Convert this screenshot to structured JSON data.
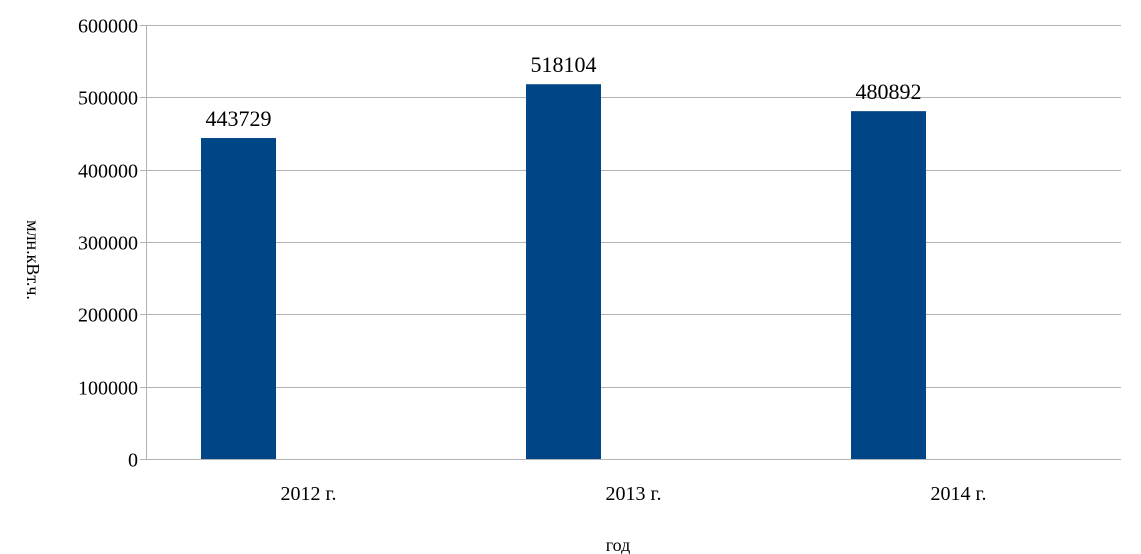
{
  "chart_data": {
    "type": "bar",
    "categories": [
      "2012 г.",
      "2013 г.",
      "2014 г."
    ],
    "series": [
      {
        "values": [
          443729,
          518104,
          480892
        ]
      }
    ],
    "data_labels": [
      "443729",
      "518104",
      "480892"
    ],
    "xlabel": "год",
    "ylabel": "млн.кВт.ч.",
    "ylim": [
      0,
      600000
    ],
    "yticks": [
      0,
      100000,
      200000,
      300000,
      400000,
      500000,
      600000
    ],
    "ytick_labels": [
      "0",
      "100000",
      "200000",
      "300000",
      "400000",
      "500000",
      "600000"
    ],
    "grid": "horizontal",
    "legend": "none",
    "colors": {
      "bar": "#004586",
      "grid": "#b3b3b3",
      "axis": "#b3b3b3",
      "text": "#000000"
    }
  }
}
